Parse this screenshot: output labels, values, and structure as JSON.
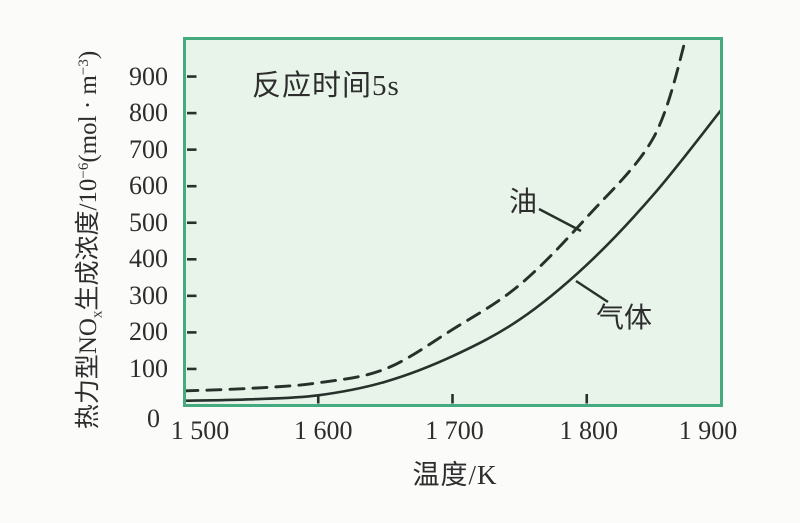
{
  "figure": {
    "background": "#fbfbfa",
    "plot_background": "#e8f3e9",
    "frame_color": "#45aa7d",
    "curve_color": "#25312a",
    "text_color": "#2d2d2d"
  },
  "chart_data": {
    "type": "line",
    "title": "",
    "annotation": "反应时间5s",
    "xlabel": "温度/K",
    "ylabel": "热力型NOx生成浓度/10−6(mol · m−3)",
    "ylabel_parts": {
      "seg1": "热力型NO",
      "sub1": "x",
      "seg2": "生成浓度/10",
      "sup1": "−6",
      "seg3": "(mol · m",
      "sup2": "−3",
      "seg4": ")"
    },
    "xlim": [
      1500,
      1900
    ],
    "ylim": [
      0,
      1000
    ],
    "grid": false,
    "legend_position": "inline-curve-labels",
    "x_ticks": [
      {
        "value": 1500,
        "label": "1 500",
        "dx": 16
      },
      {
        "value": 1600,
        "label": "1 600",
        "dx": 5
      },
      {
        "value": 1700,
        "label": "1 700",
        "dx": 2
      },
      {
        "value": 1800,
        "label": "1 800",
        "dx": 2
      },
      {
        "value": 1900,
        "label": "1 900",
        "dx": -13
      }
    ],
    "y_ticks": [
      {
        "value": 0,
        "label": "0",
        "dx": -8,
        "dy": 13
      },
      {
        "value": 100,
        "label": "100",
        "dx": 0,
        "dy": 0
      },
      {
        "value": 200,
        "label": "200",
        "dx": 0,
        "dy": 0
      },
      {
        "value": 300,
        "label": "300",
        "dx": 0,
        "dy": 0
      },
      {
        "value": 400,
        "label": "400",
        "dx": 0,
        "dy": 0
      },
      {
        "value": 500,
        "label": "500",
        "dx": 0,
        "dy": 0
      },
      {
        "value": 600,
        "label": "600",
        "dx": 0,
        "dy": 0
      },
      {
        "value": 700,
        "label": "700",
        "dx": 0,
        "dy": 0
      },
      {
        "value": 800,
        "label": "800",
        "dx": 0,
        "dy": 0
      },
      {
        "value": 900,
        "label": "900",
        "dx": 0,
        "dy": 0
      }
    ],
    "series": [
      {
        "name": "油",
        "line_style": "dashed",
        "x": [
          1500,
          1550,
          1600,
          1650,
          1700,
          1750,
          1800,
          1850,
          1875
        ],
        "y": [
          40,
          47,
          62,
          100,
          208,
          330,
          515,
          735,
          1020
        ]
      },
      {
        "name": "气体",
        "line_style": "solid",
        "x": [
          1500,
          1550,
          1600,
          1650,
          1700,
          1750,
          1800,
          1850,
          1900
        ],
        "y": [
          13,
          17,
          28,
          65,
          135,
          235,
          385,
          578,
          808
        ]
      }
    ]
  }
}
